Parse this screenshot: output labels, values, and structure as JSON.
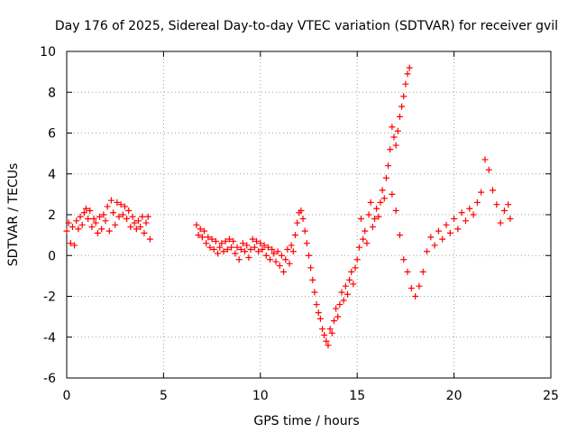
{
  "chart_data": {
    "type": "scatter",
    "title": "Day 176 of 2025, Sidereal Day-to-day VTEC variation (SDTVAR) for receiver gvil",
    "xlabel": "GPS time / hours",
    "ylabel": "SDTVAR / TECUs",
    "xlim": [
      0,
      25
    ],
    "ylim": [
      -6,
      10
    ],
    "xticks": [
      0,
      5,
      10,
      15,
      20,
      25
    ],
    "yticks": [
      -6,
      -4,
      -2,
      0,
      2,
      4,
      6,
      8,
      10
    ],
    "grid": true,
    "marker": "+",
    "series_color": "#ff0000",
    "series": [
      {
        "name": "SDTVAR",
        "points": [
          [
            0.0,
            1.2
          ],
          [
            0.1,
            1.6
          ],
          [
            0.2,
            0.6
          ],
          [
            0.3,
            1.4
          ],
          [
            0.4,
            0.5
          ],
          [
            0.5,
            1.7
          ],
          [
            0.6,
            1.3
          ],
          [
            0.7,
            1.9
          ],
          [
            0.8,
            1.5
          ],
          [
            0.9,
            2.1
          ],
          [
            1.0,
            2.3
          ],
          [
            1.1,
            1.8
          ],
          [
            1.2,
            2.2
          ],
          [
            1.3,
            1.4
          ],
          [
            1.4,
            1.8
          ],
          [
            1.5,
            1.6
          ],
          [
            1.6,
            1.1
          ],
          [
            1.7,
            1.9
          ],
          [
            1.8,
            1.3
          ],
          [
            1.9,
            2.0
          ],
          [
            2.0,
            1.7
          ],
          [
            2.1,
            2.4
          ],
          [
            2.2,
            1.2
          ],
          [
            2.3,
            2.7
          ],
          [
            2.4,
            2.1
          ],
          [
            2.5,
            1.5
          ],
          [
            2.6,
            2.6
          ],
          [
            2.7,
            1.9
          ],
          [
            2.8,
            2.5
          ],
          [
            2.9,
            2.0
          ],
          [
            3.0,
            2.4
          ],
          [
            3.1,
            1.8
          ],
          [
            3.2,
            2.2
          ],
          [
            3.3,
            1.4
          ],
          [
            3.4,
            1.9
          ],
          [
            3.5,
            1.6
          ],
          [
            3.6,
            1.3
          ],
          [
            3.7,
            1.7
          ],
          [
            3.8,
            1.4
          ],
          [
            3.9,
            1.9
          ],
          [
            4.0,
            1.1
          ],
          [
            4.1,
            1.6
          ],
          [
            4.2,
            1.9
          ],
          [
            4.3,
            0.8
          ],
          [
            6.7,
            1.5
          ],
          [
            6.8,
            1.0
          ],
          [
            6.9,
            1.3
          ],
          [
            7.0,
            0.9
          ],
          [
            7.1,
            1.2
          ],
          [
            7.2,
            0.6
          ],
          [
            7.3,
            0.9
          ],
          [
            7.4,
            0.4
          ],
          [
            7.5,
            0.8
          ],
          [
            7.6,
            0.3
          ],
          [
            7.7,
            0.7
          ],
          [
            7.8,
            0.1
          ],
          [
            7.9,
            0.4
          ],
          [
            8.0,
            0.6
          ],
          [
            8.1,
            0.2
          ],
          [
            8.2,
            0.7
          ],
          [
            8.3,
            0.3
          ],
          [
            8.4,
            0.8
          ],
          [
            8.5,
            0.4
          ],
          [
            8.6,
            0.7
          ],
          [
            8.7,
            0.1
          ],
          [
            8.8,
            0.4
          ],
          [
            8.9,
            -0.2
          ],
          [
            9.0,
            0.3
          ],
          [
            9.1,
            0.6
          ],
          [
            9.2,
            0.2
          ],
          [
            9.3,
            0.5
          ],
          [
            9.4,
            -0.1
          ],
          [
            9.5,
            0.3
          ],
          [
            9.6,
            0.8
          ],
          [
            9.7,
            0.4
          ],
          [
            9.8,
            0.7
          ],
          [
            9.9,
            0.2
          ],
          [
            10.0,
            0.6
          ],
          [
            10.1,
            0.3
          ],
          [
            10.2,
            0.5
          ],
          [
            10.3,
            0.0
          ],
          [
            10.4,
            0.4
          ],
          [
            10.5,
            -0.2
          ],
          [
            10.6,
            0.3
          ],
          [
            10.7,
            0.1
          ],
          [
            10.8,
            -0.3
          ],
          [
            10.9,
            0.2
          ],
          [
            11.0,
            -0.5
          ],
          [
            11.1,
            0.0
          ],
          [
            11.2,
            -0.8
          ],
          [
            11.3,
            -0.2
          ],
          [
            11.4,
            0.3
          ],
          [
            11.5,
            -0.4
          ],
          [
            11.6,
            0.5
          ],
          [
            11.7,
            0.2
          ],
          [
            11.8,
            1.0
          ],
          [
            11.9,
            1.6
          ],
          [
            12.0,
            2.1
          ],
          [
            12.1,
            2.2
          ],
          [
            12.2,
            1.8
          ],
          [
            12.3,
            1.2
          ],
          [
            12.4,
            0.6
          ],
          [
            12.5,
            0.0
          ],
          [
            12.6,
            -0.6
          ],
          [
            12.7,
            -1.2
          ],
          [
            12.8,
            -1.8
          ],
          [
            12.9,
            -2.4
          ],
          [
            13.0,
            -2.8
          ],
          [
            13.1,
            -3.1
          ],
          [
            13.2,
            -3.6
          ],
          [
            13.3,
            -3.9
          ],
          [
            13.4,
            -4.2
          ],
          [
            13.5,
            -4.4
          ],
          [
            13.6,
            -3.6
          ],
          [
            13.7,
            -3.8
          ],
          [
            13.8,
            -3.2
          ],
          [
            13.9,
            -2.6
          ],
          [
            14.0,
            -3.0
          ],
          [
            14.1,
            -2.4
          ],
          [
            14.2,
            -1.8
          ],
          [
            14.3,
            -2.2
          ],
          [
            14.4,
            -1.5
          ],
          [
            14.5,
            -1.9
          ],
          [
            14.6,
            -1.2
          ],
          [
            14.7,
            -0.8
          ],
          [
            14.8,
            -1.4
          ],
          [
            14.9,
            -0.6
          ],
          [
            15.0,
            -0.2
          ],
          [
            15.1,
            0.4
          ],
          [
            15.2,
            1.8
          ],
          [
            15.3,
            0.8
          ],
          [
            15.4,
            1.2
          ],
          [
            15.5,
            0.6
          ],
          [
            15.6,
            2.0
          ],
          [
            15.7,
            2.6
          ],
          [
            15.8,
            1.4
          ],
          [
            15.9,
            1.8
          ],
          [
            16.0,
            2.3
          ],
          [
            16.1,
            1.9
          ],
          [
            16.2,
            2.6
          ],
          [
            16.3,
            3.2
          ],
          [
            16.4,
            2.8
          ],
          [
            16.5,
            3.8
          ],
          [
            16.6,
            4.4
          ],
          [
            16.7,
            5.2
          ],
          [
            16.8,
            6.3
          ],
          [
            16.9,
            5.8
          ],
          [
            17.0,
            5.4
          ],
          [
            17.1,
            6.1
          ],
          [
            17.2,
            6.8
          ],
          [
            17.3,
            7.3
          ],
          [
            17.4,
            7.8
          ],
          [
            17.5,
            8.4
          ],
          [
            17.6,
            8.9
          ],
          [
            17.7,
            9.2
          ],
          [
            16.8,
            3.0
          ],
          [
            17.0,
            2.2
          ],
          [
            17.2,
            1.0
          ],
          [
            17.4,
            -0.2
          ],
          [
            17.6,
            -0.8
          ],
          [
            17.8,
            -1.6
          ],
          [
            18.0,
            -2.0
          ],
          [
            18.2,
            -1.5
          ],
          [
            18.4,
            -0.8
          ],
          [
            18.6,
            0.2
          ],
          [
            18.8,
            0.9
          ],
          [
            19.0,
            0.5
          ],
          [
            19.2,
            1.2
          ],
          [
            19.4,
            0.8
          ],
          [
            19.6,
            1.5
          ],
          [
            19.8,
            1.1
          ],
          [
            20.0,
            1.8
          ],
          [
            20.2,
            1.3
          ],
          [
            20.4,
            2.1
          ],
          [
            20.6,
            1.7
          ],
          [
            20.8,
            2.3
          ],
          [
            21.0,
            2.0
          ],
          [
            21.2,
            2.6
          ],
          [
            21.4,
            3.1
          ],
          [
            21.6,
            4.7
          ],
          [
            21.8,
            4.2
          ],
          [
            22.0,
            3.2
          ],
          [
            22.2,
            2.5
          ],
          [
            22.4,
            1.6
          ],
          [
            22.6,
            2.2
          ],
          [
            22.8,
            2.5
          ],
          [
            22.9,
            1.8
          ]
        ]
      }
    ]
  }
}
